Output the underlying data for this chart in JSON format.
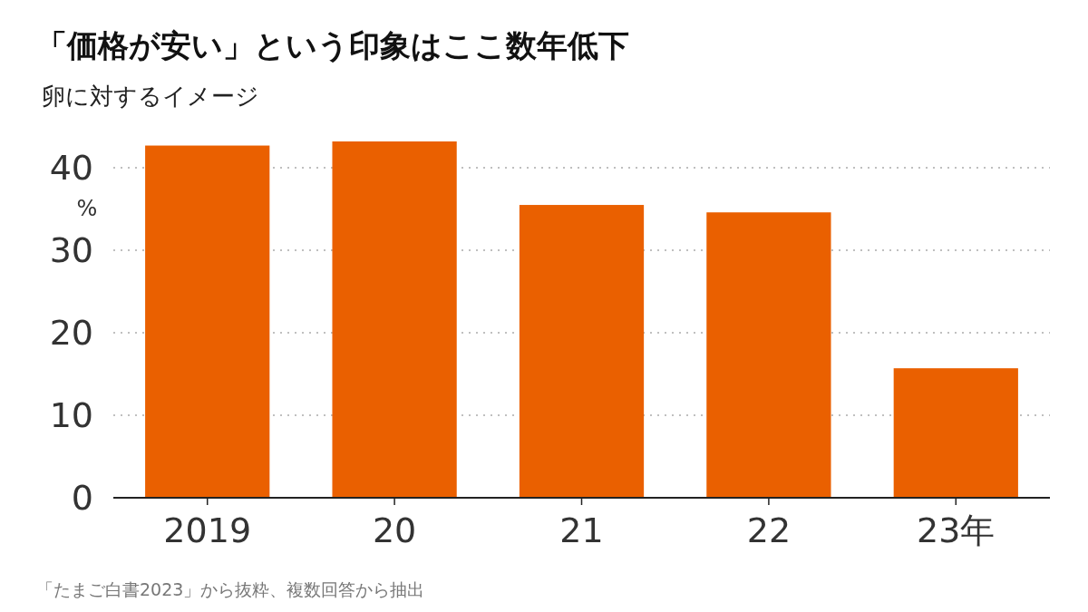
{
  "chart_data": {
    "type": "bar",
    "title": "「価格が安い」という印象はここ数年低下",
    "subtitle": "卵に対するイメージ",
    "ylabel": "%",
    "categories": [
      "2019",
      "20",
      "21",
      "22",
      "23年"
    ],
    "values": [
      42.7,
      43.2,
      35.5,
      34.6,
      15.7
    ],
    "color": "#ea6000",
    "ylim": [
      0,
      43.2
    ],
    "yticks": [
      0,
      10,
      20,
      30,
      40
    ],
    "grid": "y",
    "annotations": [
      "「たまご白書2023」から抜粋、複数回答から抽出"
    ]
  }
}
